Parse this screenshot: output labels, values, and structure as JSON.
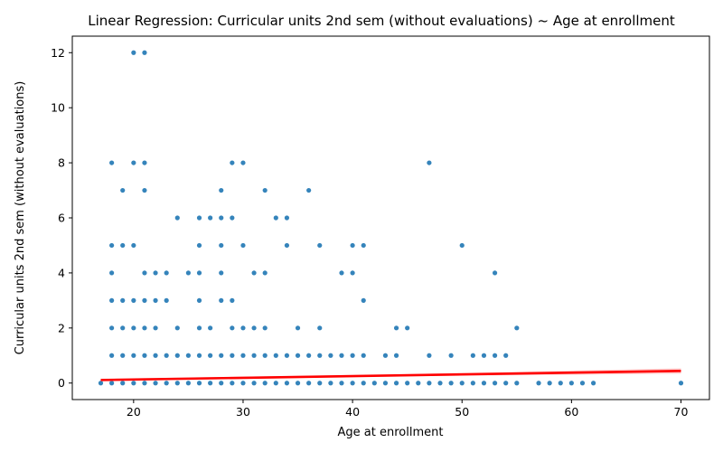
{
  "chart_data": {
    "type": "scatter",
    "title": "Linear Regression: Curricular units 2nd sem (without evaluations) ~ Age at enrollment",
    "xlabel": "Age at enrollment",
    "ylabel": "Curricular units 2nd sem (without evaluations)",
    "xlim": [
      14.4,
      72.6
    ],
    "ylim": [
      -0.6,
      12.6
    ],
    "xticks": [
      20,
      30,
      40,
      50,
      60,
      70
    ],
    "yticks": [
      0,
      2,
      4,
      6,
      8,
      10,
      12
    ],
    "grid": false,
    "legend": "none",
    "colors": {
      "points": "#1f77b4",
      "regression": "#ff0000",
      "band": "#ffaaaa"
    },
    "points": [
      [
        17,
        0
      ],
      [
        18,
        0
      ],
      [
        19,
        0
      ],
      [
        20,
        0
      ],
      [
        21,
        0
      ],
      [
        22,
        0
      ],
      [
        23,
        0
      ],
      [
        24,
        0
      ],
      [
        25,
        0
      ],
      [
        26,
        0
      ],
      [
        27,
        0
      ],
      [
        28,
        0
      ],
      [
        29,
        0
      ],
      [
        30,
        0
      ],
      [
        31,
        0
      ],
      [
        32,
        0
      ],
      [
        33,
        0
      ],
      [
        34,
        0
      ],
      [
        35,
        0
      ],
      [
        36,
        0
      ],
      [
        37,
        0
      ],
      [
        38,
        0
      ],
      [
        39,
        0
      ],
      [
        40,
        0
      ],
      [
        41,
        0
      ],
      [
        42,
        0
      ],
      [
        43,
        0
      ],
      [
        44,
        0
      ],
      [
        45,
        0
      ],
      [
        46,
        0
      ],
      [
        47,
        0
      ],
      [
        48,
        0
      ],
      [
        49,
        0
      ],
      [
        50,
        0
      ],
      [
        51,
        0
      ],
      [
        52,
        0
      ],
      [
        53,
        0
      ],
      [
        54,
        0
      ],
      [
        55,
        0
      ],
      [
        57,
        0
      ],
      [
        58,
        0
      ],
      [
        59,
        0
      ],
      [
        60,
        0
      ],
      [
        61,
        0
      ],
      [
        62,
        0
      ],
      [
        70,
        0
      ],
      [
        18,
        1
      ],
      [
        19,
        1
      ],
      [
        20,
        1
      ],
      [
        21,
        1
      ],
      [
        22,
        1
      ],
      [
        23,
        1
      ],
      [
        24,
        1
      ],
      [
        25,
        1
      ],
      [
        26,
        1
      ],
      [
        27,
        1
      ],
      [
        28,
        1
      ],
      [
        29,
        1
      ],
      [
        30,
        1
      ],
      [
        31,
        1
      ],
      [
        32,
        1
      ],
      [
        33,
        1
      ],
      [
        34,
        1
      ],
      [
        35,
        1
      ],
      [
        36,
        1
      ],
      [
        37,
        1
      ],
      [
        38,
        1
      ],
      [
        39,
        1
      ],
      [
        40,
        1
      ],
      [
        41,
        1
      ],
      [
        43,
        1
      ],
      [
        44,
        1
      ],
      [
        47,
        1
      ],
      [
        49,
        1
      ],
      [
        51,
        1
      ],
      [
        52,
        1
      ],
      [
        53,
        1
      ],
      [
        54,
        1
      ],
      [
        18,
        2
      ],
      [
        19,
        2
      ],
      [
        20,
        2
      ],
      [
        21,
        2
      ],
      [
        22,
        2
      ],
      [
        24,
        2
      ],
      [
        26,
        2
      ],
      [
        27,
        2
      ],
      [
        29,
        2
      ],
      [
        30,
        2
      ],
      [
        31,
        2
      ],
      [
        32,
        2
      ],
      [
        35,
        2
      ],
      [
        37,
        2
      ],
      [
        44,
        2
      ],
      [
        45,
        2
      ],
      [
        55,
        2
      ],
      [
        18,
        3
      ],
      [
        19,
        3
      ],
      [
        20,
        3
      ],
      [
        21,
        3
      ],
      [
        22,
        3
      ],
      [
        23,
        3
      ],
      [
        26,
        3
      ],
      [
        28,
        3
      ],
      [
        29,
        3
      ],
      [
        41,
        3
      ],
      [
        18,
        4
      ],
      [
        21,
        4
      ],
      [
        22,
        4
      ],
      [
        23,
        4
      ],
      [
        25,
        4
      ],
      [
        26,
        4
      ],
      [
        28,
        4
      ],
      [
        31,
        4
      ],
      [
        32,
        4
      ],
      [
        39,
        4
      ],
      [
        40,
        4
      ],
      [
        53,
        4
      ],
      [
        18,
        5
      ],
      [
        19,
        5
      ],
      [
        20,
        5
      ],
      [
        26,
        5
      ],
      [
        28,
        5
      ],
      [
        30,
        5
      ],
      [
        34,
        5
      ],
      [
        37,
        5
      ],
      [
        40,
        5
      ],
      [
        41,
        5
      ],
      [
        50,
        5
      ],
      [
        24,
        6
      ],
      [
        26,
        6
      ],
      [
        27,
        6
      ],
      [
        28,
        6
      ],
      [
        29,
        6
      ],
      [
        33,
        6
      ],
      [
        34,
        6
      ],
      [
        19,
        7
      ],
      [
        21,
        7
      ],
      [
        28,
        7
      ],
      [
        32,
        7
      ],
      [
        36,
        7
      ],
      [
        18,
        8
      ],
      [
        20,
        8
      ],
      [
        21,
        8
      ],
      [
        29,
        8
      ],
      [
        30,
        8
      ],
      [
        47,
        8
      ],
      [
        20,
        12
      ],
      [
        21,
        12
      ]
    ],
    "regression_line": {
      "x": [
        17,
        70
      ],
      "y": [
        0.11,
        0.44
      ]
    }
  }
}
